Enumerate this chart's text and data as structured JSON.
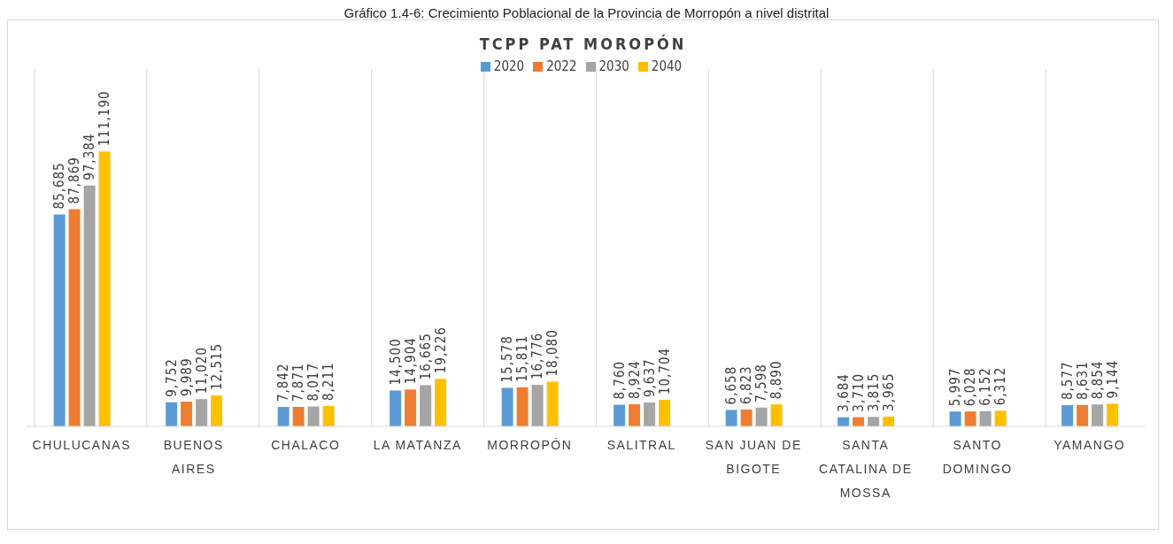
{
  "chart_data": {
    "type": "bar",
    "title": "TCPP PAT MOROPÓN",
    "annotations": [
      "Gráfico 1.4-6: Crecimiento Poblacional de la Provincia de Morropón a nivel distrital"
    ],
    "categories": [
      "CHULUCANAS",
      "BUENOS AIRES",
      "CHALACO",
      "LA MATANZA",
      "MORROPÓN",
      "SALITRAL",
      "SAN JUAN DE BIGOTE",
      "SANTA CATALINA DE MOSSA",
      "SANTO DOMINGO",
      "YAMANGO"
    ],
    "series": [
      {
        "name": "2020",
        "color": "#5b9bd5",
        "values": [
          85685,
          9752,
          7842,
          14500,
          15578,
          8760,
          6658,
          3684,
          5997,
          8577
        ],
        "value_labels": [
          "85,685",
          "9,752",
          "7,842",
          "14,500",
          "15,578",
          "8,760",
          "6,658",
          "3,684",
          "5,997",
          "8,577"
        ]
      },
      {
        "name": "2022",
        "color": "#ed7d31",
        "values": [
          87869,
          9989,
          7871,
          14904,
          15811,
          8924,
          6823,
          3710,
          6028,
          8631
        ],
        "value_labels": [
          "87,869",
          "9,989",
          "7,871",
          "14,904",
          "15,811",
          "8,924",
          "6,823",
          "3,710",
          "6,028",
          "8,631"
        ]
      },
      {
        "name": "2030",
        "color": "#a5a5a5",
        "values": [
          97384,
          11020,
          8017,
          16665,
          16776,
          9637,
          7598,
          3815,
          6152,
          8854
        ],
        "value_labels": [
          "97,384",
          "11,020",
          "8,017",
          "16,665",
          "16,776",
          "9,637",
          "7,598",
          "3,815",
          "6,152",
          "8,854"
        ]
      },
      {
        "name": "2040",
        "color": "#ffc000",
        "values": [
          111190,
          12515,
          8211,
          19226,
          18080,
          10704,
          8890,
          3965,
          6312,
          9144
        ],
        "value_labels": [
          "111,190",
          "12,515",
          "8,211",
          "19,226",
          "18,080",
          "10,704",
          "8,890",
          "3,965",
          "6,312",
          "9,144"
        ]
      }
    ],
    "grid": "x",
    "legend": "top"
  }
}
